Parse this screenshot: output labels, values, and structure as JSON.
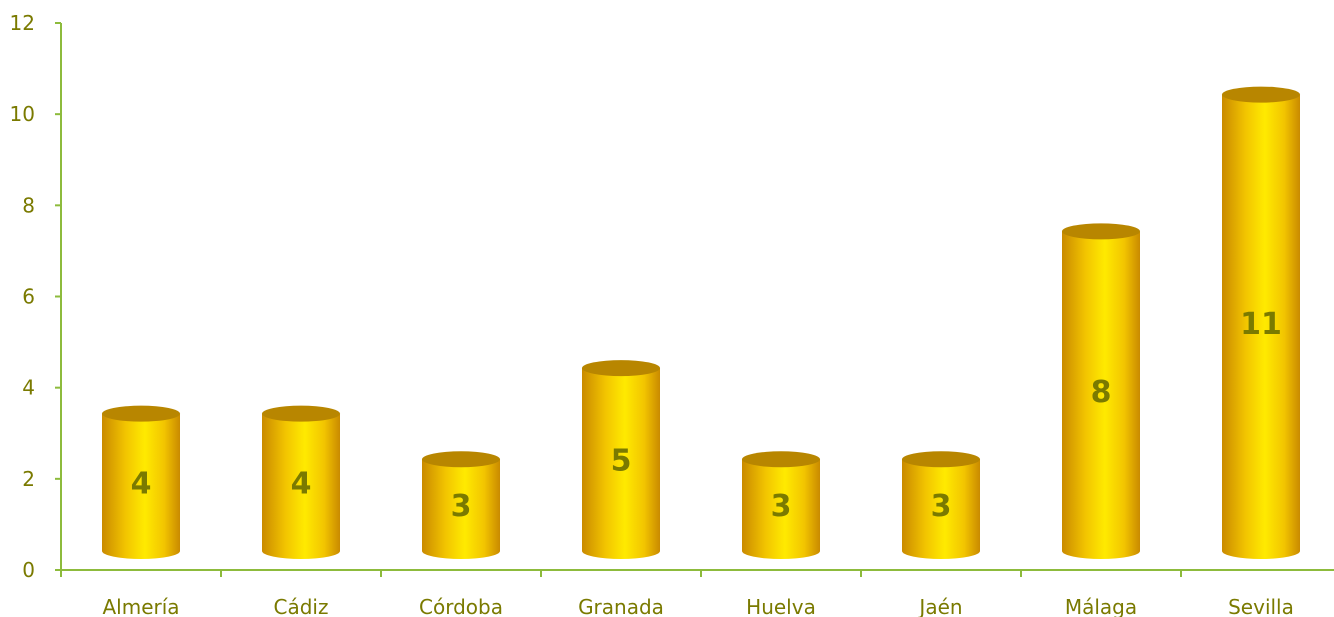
{
  "chart_data": {
    "type": "bar",
    "style": "cylinder",
    "categories": [
      "Almería",
      "Cádiz",
      "Córdoba",
      "Granada",
      "Huelva",
      "Jaén",
      "Málaga",
      "Sevilla"
    ],
    "values": [
      4,
      4,
      3,
      5,
      3,
      3,
      8,
      11
    ],
    "data_labels": [
      "4",
      "4",
      "3",
      "5",
      "3",
      "3",
      "8",
      "11"
    ],
    "ylim": [
      0,
      12
    ],
    "yticks": [
      0,
      2,
      4,
      6,
      8,
      10,
      12
    ],
    "title": "",
    "xlabel": "",
    "ylabel": "",
    "grid": false,
    "legend": "none",
    "colors": {
      "bar_light": "#ffea00",
      "bar_mid": "#f2c400",
      "bar_dark": "#c98a00",
      "bar_top": "#b88600",
      "axis": "#8dbb3c",
      "text": "#7a7a00"
    }
  }
}
